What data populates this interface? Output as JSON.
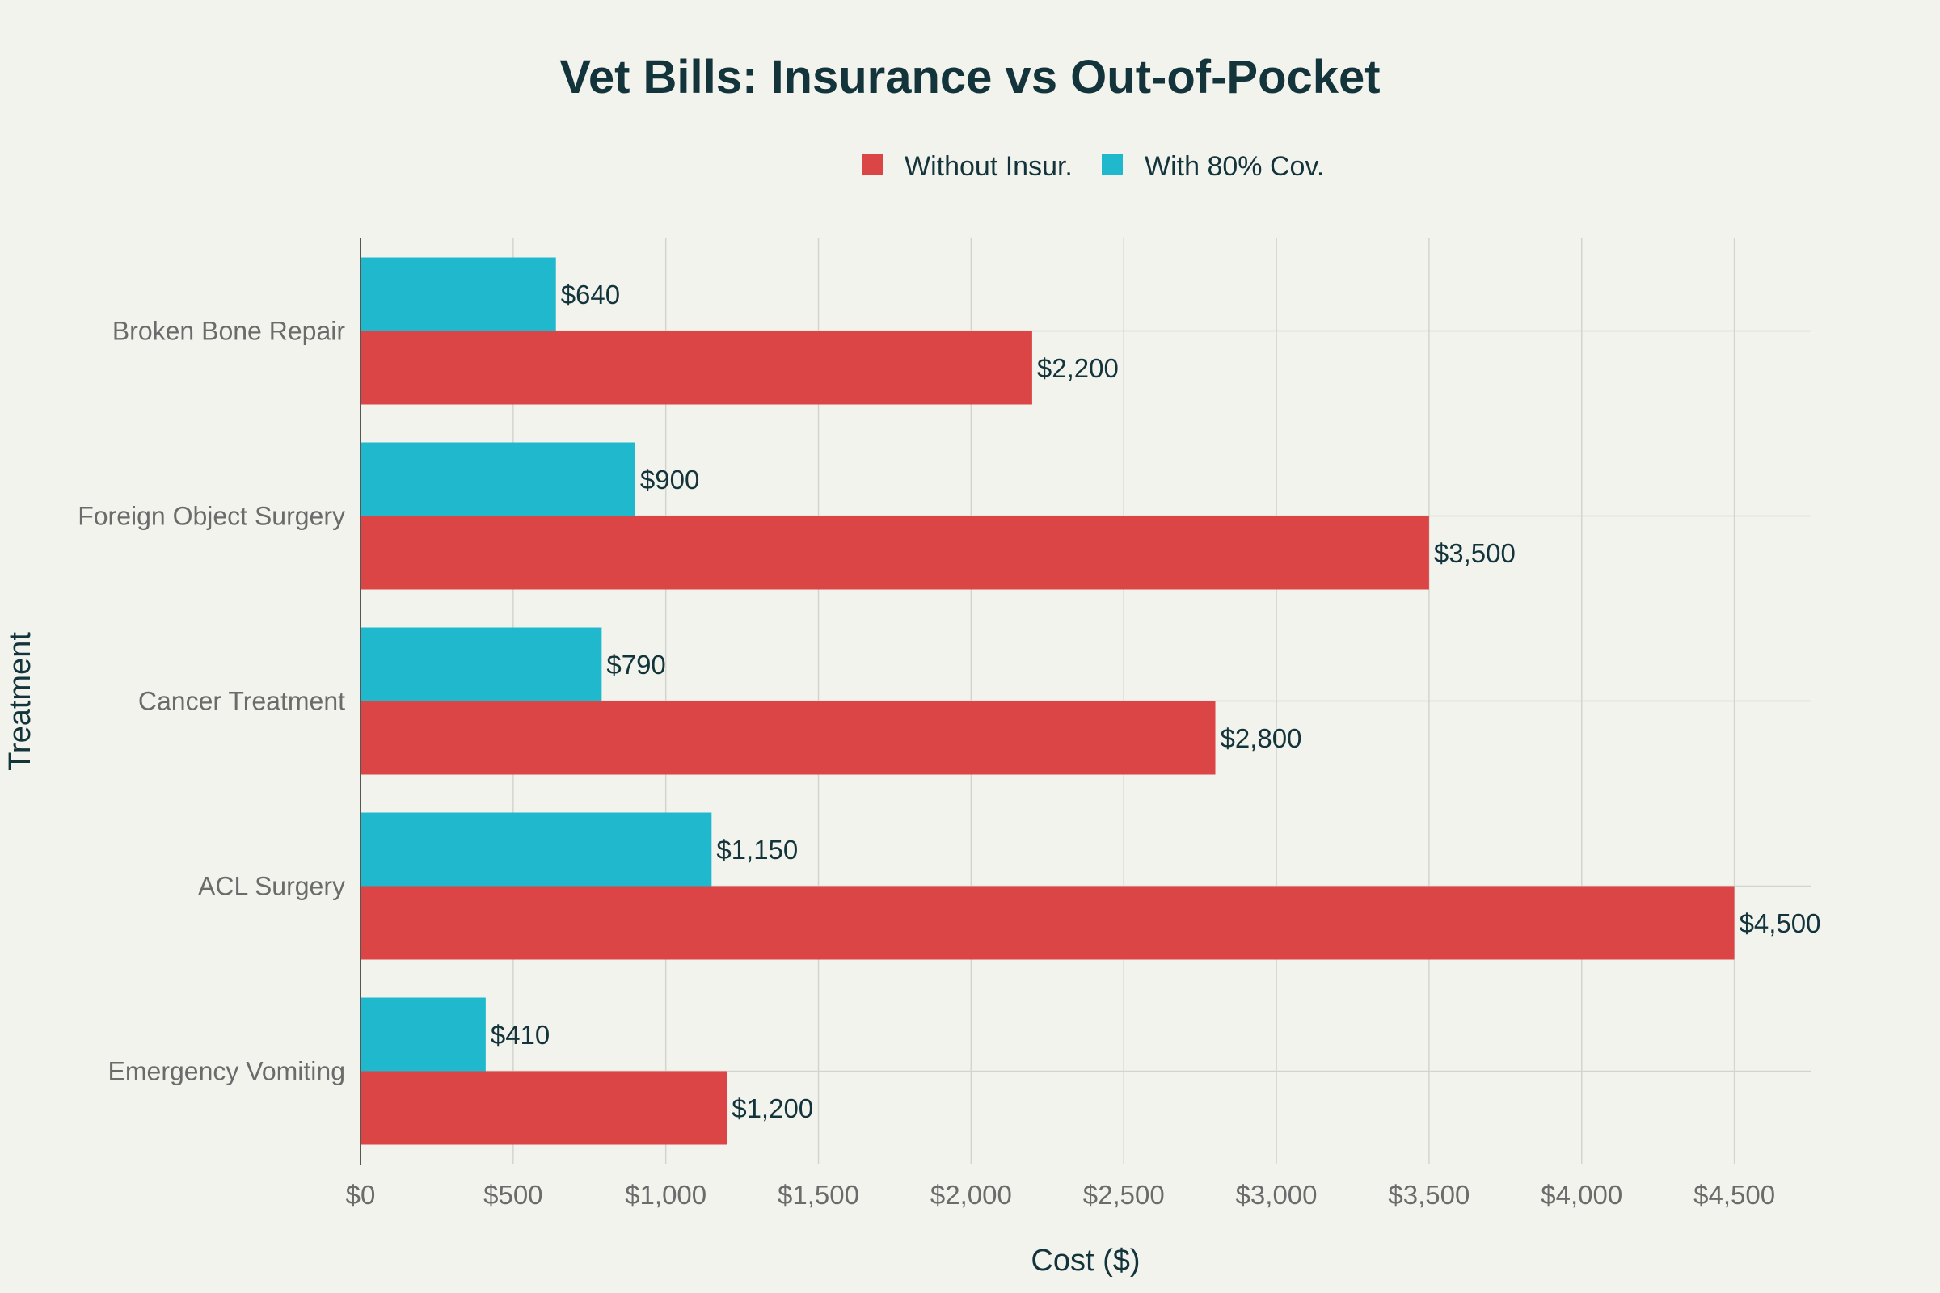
{
  "chart_data": {
    "type": "bar",
    "orientation": "horizontal",
    "title": "Vet Bills: Insurance vs Out-of-Pocket",
    "xlabel": "Cost ($)",
    "ylabel": "Treatment",
    "xlim": [
      0,
      4750
    ],
    "xticks": [
      0,
      500,
      1000,
      1500,
      2000,
      2500,
      3000,
      3500,
      4000,
      4500
    ],
    "xtick_labels": [
      "$0",
      "$500",
      "$1,000",
      "$1,500",
      "$2,000",
      "$2,500",
      "$3,000",
      "$3,500",
      "$4,000",
      "$4,500"
    ],
    "categories": [
      "Broken Bone Repair",
      "Foreign Object Surgery",
      "Cancer Treatment",
      "ACL Surgery",
      "Emergency Vomiting"
    ],
    "series": [
      {
        "name": "Without Insur.",
        "color": "#db4545",
        "values": [
          2200,
          3500,
          2800,
          4500,
          1200
        ],
        "labels": [
          "$2,200",
          "$3,500",
          "$2,800",
          "$4,500",
          "$1,200"
        ]
      },
      {
        "name": "With 80% Cov.",
        "color": "#1fb8cd",
        "values": [
          640,
          900,
          790,
          1150,
          410
        ],
        "labels": [
          "$640",
          "$900",
          "$790",
          "$1,150",
          "$410"
        ]
      }
    ],
    "legend_position": "top-center",
    "grid": true
  }
}
